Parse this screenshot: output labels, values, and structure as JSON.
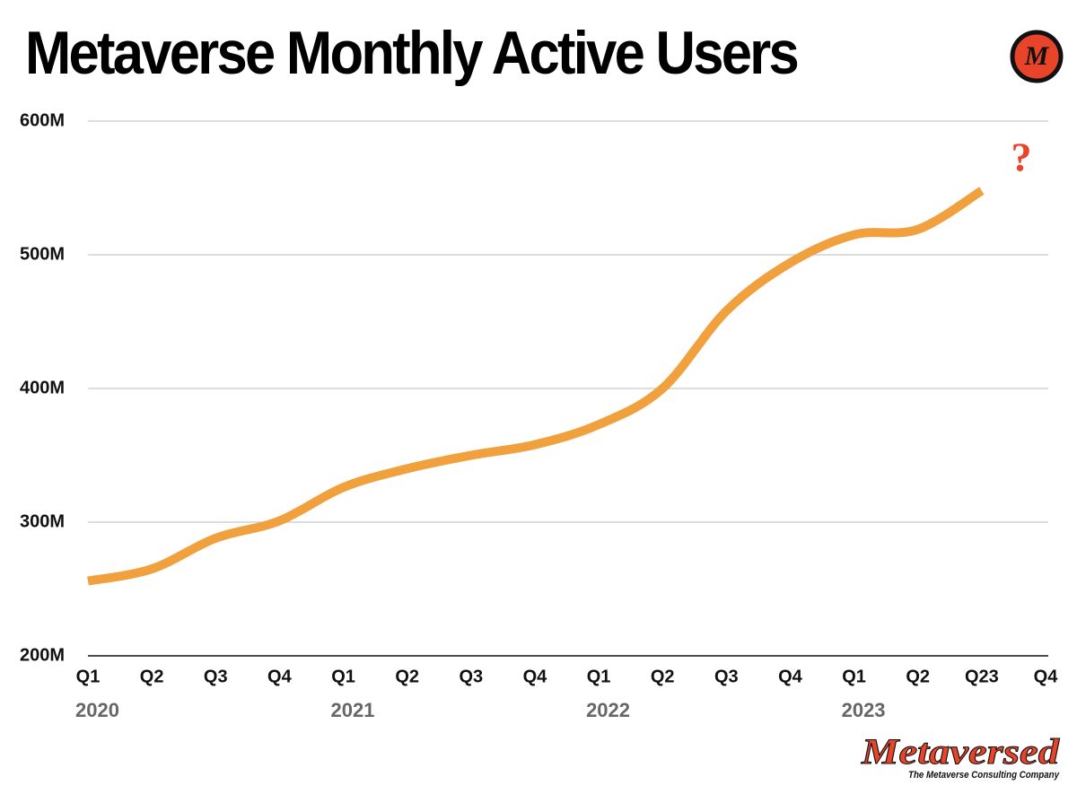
{
  "chart_data": {
    "type": "line",
    "title": "Metaverse Monthly Active Users",
    "categories": [
      "Q1",
      "Q2",
      "Q3",
      "Q4",
      "Q1",
      "Q2",
      "Q3",
      "Q4",
      "Q1",
      "Q2",
      "Q3",
      "Q4",
      "Q1",
      "Q2",
      "Q23",
      "Q4"
    ],
    "year_labels": [
      {
        "index": 0,
        "label": "2020"
      },
      {
        "index": 4,
        "label": "2021"
      },
      {
        "index": 8,
        "label": "2022"
      },
      {
        "index": 12,
        "label": "2023"
      }
    ],
    "series": [
      {
        "name": "Monthly Active Users",
        "color": "#f0a03c",
        "values": [
          256,
          265,
          288,
          301,
          326,
          340,
          350,
          358,
          373,
          400,
          458,
          494,
          515,
          519,
          548,
          null
        ]
      }
    ],
    "ylim": [
      200,
      600
    ],
    "yticks": [
      {
        "value": 200,
        "label": "200M"
      },
      {
        "value": 300,
        "label": "300M"
      },
      {
        "value": 400,
        "label": "400M"
      },
      {
        "value": 500,
        "label": "500M"
      },
      {
        "value": 600,
        "label": "600M"
      }
    ],
    "grid": true,
    "annotation": {
      "text": "?",
      "index": 15,
      "value": 570,
      "color": "#e8442a"
    },
    "logo": "M",
    "brand": "Metaversed",
    "brand_tagline": "The Metaverse Consulting Company"
  }
}
